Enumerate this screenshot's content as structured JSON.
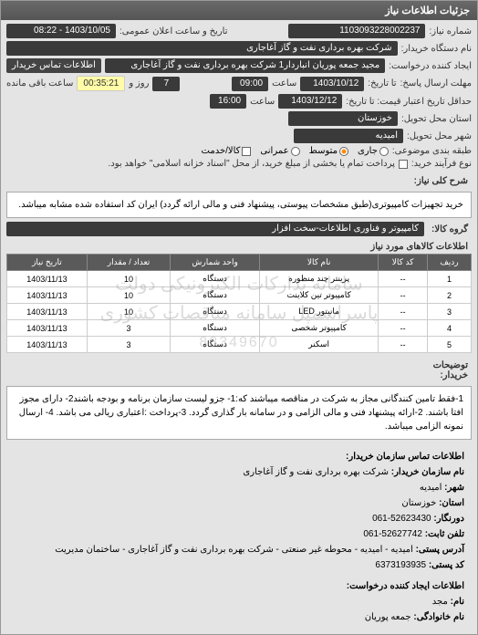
{
  "panel_title": "جزئیات اطلاعات نیاز",
  "fields": {
    "req_num_label": "شماره نیاز:",
    "req_num": "1103093228002237",
    "datetime_label": "تاریخ و ساعت اعلان عمومی:",
    "datetime": "1403/10/05 - 08:22",
    "buyer_label": "نام دستگاه خریدار:",
    "buyer": "شرکت بهره برداری نفت و گاز آغاجاری",
    "creator_label": "ایجاد کننده درخواست:",
    "creator": "مجید جمعه پوریان انباردار1 شرکت بهره برداری نفت و گاز آغاجاری",
    "contact_btn": "اطلاعات تماس خریدار",
    "deadline_send_label": "مهلت ارسال پاسخ:",
    "deadline_to_label": "تا تاریخ:",
    "deadline_date": "1403/10/12",
    "time_label": "ساعت",
    "deadline_time": "09:00",
    "day_label": "روز و",
    "days_left": "7",
    "remain_time": "00:35:21",
    "remain_label": "ساعت باقی مانده",
    "price_valid_label": "حداقل تاریخ اعتبار قیمت: تا تاریخ:",
    "price_valid_date": "1403/12/12",
    "price_valid_time": "16:00",
    "delivery_province_label": "استان محل تحویل:",
    "delivery_province": "خوزستان",
    "delivery_city_label": "شهر محل تحویل:",
    "delivery_city": "امیدیه",
    "budget_label": "طبقه بندی موضوعی:",
    "budget_opts": [
      "جاری",
      "متوسط",
      "عمرانی",
      "کالا/خدمت"
    ],
    "process_label": "نوع فرآیند خرید:",
    "process_text": "پرداخت تمام یا بخشی از مبلغ خرید، از محل \"اسناد خزانه اسلامی\" خواهد بود."
  },
  "description": {
    "label": "شرح کلی نیاز:",
    "text": "خرید تجهیزات کامپیوتری(طبق مشخصات پیوستی، پیشنهاد فنی و مالی ارائه گردد) ایران کد استفاده شده مشابه میباشد."
  },
  "group": {
    "label": "گروه کالا:",
    "value": "کامپیوتر و فناوری اطلاعات-سخت افزار"
  },
  "table": {
    "title": "اطلاعات کالاهای مورد نیاز",
    "columns": [
      "ردیف",
      "کد کالا",
      "نام کالا",
      "واحد شمارش",
      "تعداد / مقدار",
      "تاریخ نیاز"
    ],
    "rows": [
      [
        "1",
        "--",
        "پرینتر چند منظوره",
        "دستگاه",
        "10",
        "1403/11/13"
      ],
      [
        "2",
        "--",
        "کامپیوتر تین کلاینت",
        "دستگاه",
        "10",
        "1403/11/13"
      ],
      [
        "3",
        "--",
        "مانیتور LED",
        "دستگاه",
        "10",
        "1403/11/13"
      ],
      [
        "4",
        "--",
        "کامپیوتر شخصی",
        "دستگاه",
        "3",
        "1403/11/13"
      ],
      [
        "5",
        "--",
        "اسکنر",
        "دستگاه",
        "3",
        "1403/11/13"
      ]
    ],
    "watermark1": "سامانه تدارکات الکترونیکی دولت",
    "watermark2": "پاسراسمپل سامانه مناقصات کشوری",
    "watermark_num": "88349670"
  },
  "buyer_notes": {
    "label": "توضیحات خریدار:",
    "text": "1-فقط تامین کنندگانی مجاز به شرکت در مناقصه میباشند که:1- جزو لیست سازمان برنامه و بودجه باشند2- دارای مجوز افتا باشند. 2-ارائه پیشنهاد فنی و مالی الزامی و در سامانه بار گذاری گردد. 3-پرداخت :اعتباری ریالی می باشد. 4- ارسال نمونه الزامی میباشد."
  },
  "contact": {
    "header": "اطلاعات تماس سازمان خریدار:",
    "org_label": "نام سازمان خریدار:",
    "org": "شرکت بهره برداری نفت و گاز آغاجاری",
    "city_label": "شهر:",
    "city": "امیدیه",
    "province_label": "استان:",
    "province": "خوزستان",
    "fax_label": "دورنگار:",
    "fax": "52623430-061",
    "phone_label": "تلفن ثابت:",
    "phone": "52627742-061",
    "address_label": "آدرس پستی:",
    "address": "امیدیه - امیدیه - محوطه غیر صنعتی - شرکت بهره برداری نفت و گاز آغاجاری - ساختمان مدیریت",
    "postal_label": "کد پستی:",
    "postal": "6373193935"
  },
  "req_creator_header": "اطلاعات ایجاد کننده درخواست:",
  "req_creator": {
    "name_label": "نام:",
    "name": "مجد",
    "family_label": "نام خانوادگی:",
    "family": "جمعه پوریان"
  }
}
